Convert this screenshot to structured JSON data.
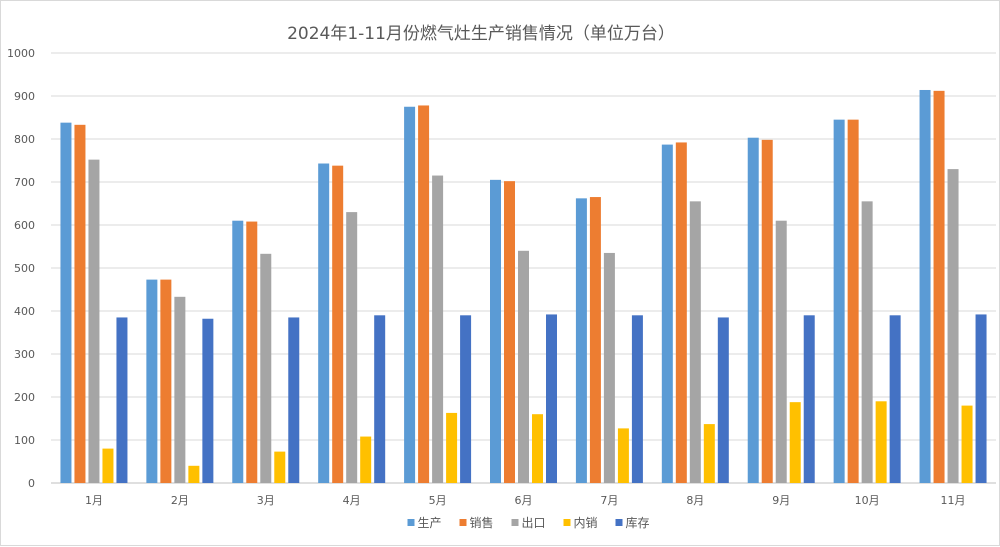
{
  "chart_data": {
    "type": "bar",
    "title": "2024年1-11月份燃气灶生产销售情况（单位万台）",
    "xlabel": "",
    "ylabel": "",
    "ylim": [
      0,
      1000
    ],
    "yticks": [
      0,
      100,
      200,
      300,
      400,
      500,
      600,
      700,
      800,
      900,
      1000
    ],
    "grid": true,
    "legend_position": "bottom",
    "categories": [
      "1月",
      "2月",
      "3月",
      "4月",
      "5月",
      "6月",
      "7月",
      "8月",
      "9月",
      "10月",
      "11月"
    ],
    "series": [
      {
        "name": "生产",
        "color": "#5b9bd5",
        "values": [
          838,
          473,
          610,
          743,
          875,
          705,
          662,
          787,
          803,
          845,
          914
        ]
      },
      {
        "name": "销售",
        "color": "#ed7d31",
        "values": [
          833,
          473,
          608,
          738,
          878,
          702,
          665,
          792,
          798,
          845,
          912
        ]
      },
      {
        "name": "出口",
        "color": "#a5a5a5",
        "values": [
          752,
          433,
          533,
          630,
          715,
          540,
          535,
          655,
          610,
          655,
          730
        ]
      },
      {
        "name": "内销",
        "color": "#ffc000",
        "values": [
          80,
          40,
          73,
          108,
          163,
          160,
          127,
          137,
          188,
          190,
          180
        ]
      },
      {
        "name": "库存",
        "color": "#4472c4",
        "values": [
          385,
          382,
          385,
          390,
          390,
          392,
          390,
          385,
          390,
          390,
          392
        ]
      }
    ]
  }
}
